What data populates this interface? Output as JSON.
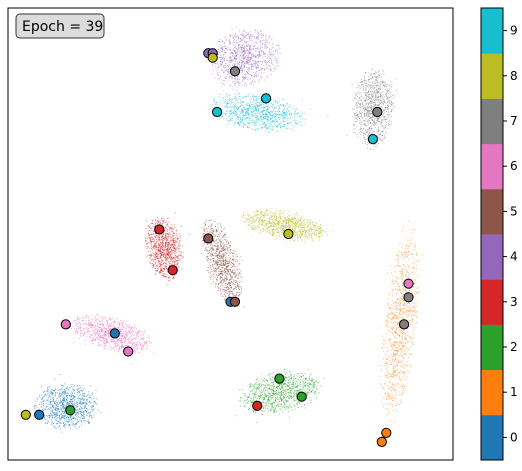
{
  "annotation": "Epoch = 39",
  "chart_data": {
    "type": "scatter",
    "title": "",
    "xlabel": "",
    "ylabel": "",
    "axes_ticks_visible": false,
    "grid": false,
    "colormap": "tab10",
    "colorbar": {
      "position": "right",
      "ticks": [
        "0",
        "1",
        "2",
        "3",
        "4",
        "5",
        "6",
        "7",
        "8",
        "9"
      ]
    },
    "class_colors": [
      "#1f77b4",
      "#ff7f0e",
      "#2ca02c",
      "#d62728",
      "#9467bd",
      "#8c564b",
      "#e377c2",
      "#7f7f7f",
      "#bcbd22",
      "#17becf"
    ],
    "clusters": [
      {
        "label": 0,
        "center": [
          0.13,
          0.88
        ],
        "rx": 0.07,
        "ry": 0.05,
        "rot": 0
      },
      {
        "label": 1,
        "center": [
          0.88,
          0.7
        ],
        "rx": 0.035,
        "ry": 0.21,
        "rot": 6
      },
      {
        "label": 2,
        "center": [
          0.61,
          0.85
        ],
        "rx": 0.09,
        "ry": 0.045,
        "rot": -10
      },
      {
        "label": 3,
        "center": [
          0.35,
          0.53
        ],
        "rx": 0.04,
        "ry": 0.07,
        "rot": -8
      },
      {
        "label": 4,
        "center": [
          0.53,
          0.11
        ],
        "rx": 0.08,
        "ry": 0.06,
        "rot": -15
      },
      {
        "label": 5,
        "center": [
          0.48,
          0.56
        ],
        "rx": 0.035,
        "ry": 0.095,
        "rot": -18
      },
      {
        "label": 6,
        "center": [
          0.23,
          0.72
        ],
        "rx": 0.09,
        "ry": 0.035,
        "rot": 15
      },
      {
        "label": 7,
        "center": [
          0.82,
          0.22
        ],
        "rx": 0.045,
        "ry": 0.09,
        "rot": 5
      },
      {
        "label": 8,
        "center": [
          0.62,
          0.48
        ],
        "rx": 0.095,
        "ry": 0.03,
        "rot": 12
      },
      {
        "label": 9,
        "center": [
          0.56,
          0.23
        ],
        "rx": 0.105,
        "ry": 0.04,
        "rot": 8
      }
    ],
    "highlighted_points": [
      {
        "label": 4,
        "x": 0.45,
        "y": 0.1
      },
      {
        "label": 4,
        "x": 0.46,
        "y": 0.1
      },
      {
        "label": 8,
        "x": 0.46,
        "y": 0.11
      },
      {
        "label": 7,
        "x": 0.51,
        "y": 0.14
      },
      {
        "label": 9,
        "x": 0.58,
        "y": 0.2
      },
      {
        "label": 9,
        "x": 0.47,
        "y": 0.23
      },
      {
        "label": 7,
        "x": 0.83,
        "y": 0.23
      },
      {
        "label": 9,
        "x": 0.82,
        "y": 0.29
      },
      {
        "label": 3,
        "x": 0.34,
        "y": 0.49
      },
      {
        "label": 5,
        "x": 0.45,
        "y": 0.51
      },
      {
        "label": 8,
        "x": 0.63,
        "y": 0.5
      },
      {
        "label": 3,
        "x": 0.37,
        "y": 0.58
      },
      {
        "label": 6,
        "x": 0.9,
        "y": 0.61
      },
      {
        "label": 7,
        "x": 0.9,
        "y": 0.64
      },
      {
        "label": 0,
        "x": 0.5,
        "y": 0.65
      },
      {
        "label": 5,
        "x": 0.51,
        "y": 0.65
      },
      {
        "label": 7,
        "x": 0.89,
        "y": 0.7
      },
      {
        "label": 6,
        "x": 0.13,
        "y": 0.7
      },
      {
        "label": 0,
        "x": 0.24,
        "y": 0.72
      },
      {
        "label": 6,
        "x": 0.27,
        "y": 0.76
      },
      {
        "label": 2,
        "x": 0.61,
        "y": 0.82
      },
      {
        "label": 2,
        "x": 0.66,
        "y": 0.86
      },
      {
        "label": 3,
        "x": 0.56,
        "y": 0.88
      },
      {
        "label": 2,
        "x": 0.14,
        "y": 0.89
      },
      {
        "label": 8,
        "x": 0.04,
        "y": 0.9
      },
      {
        "label": 0,
        "x": 0.07,
        "y": 0.9
      },
      {
        "label": 1,
        "x": 0.85,
        "y": 0.94
      },
      {
        "label": 1,
        "x": 0.84,
        "y": 0.96
      }
    ]
  }
}
